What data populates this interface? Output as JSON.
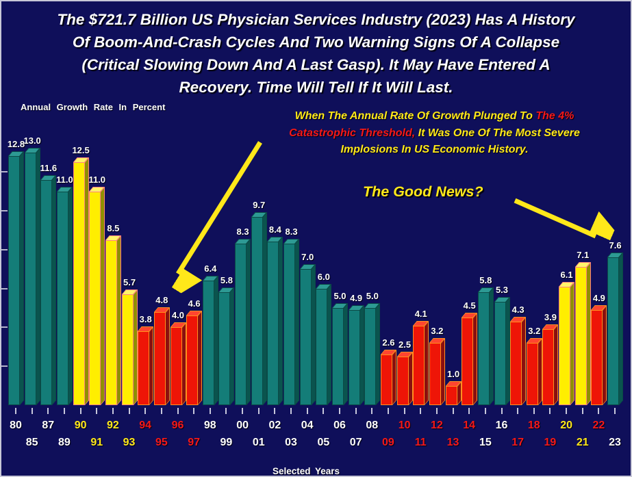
{
  "title": {
    "lines": [
      "The $721.7 Billion US Physician Services Industry (2023) Has A History",
      "Of Boom-And-Crash Cycles And Two Warning Signs Of A Collapse",
      "(Critical Slowing Down And A Last Gasp). It May Have Entered A",
      "Recovery. Time Will Tell If It Will Last."
    ]
  },
  "axis_note": "Annual Growth Rate In Percent",
  "xlabel": "Selected Years",
  "good_news": "The Good News?",
  "callout": {
    "lines": [
      [
        {
          "text": "When The Annual Rate Of Growth Plunged To ",
          "color": "yellow"
        },
        {
          "text": "The 4%",
          "color": "red"
        }
      ],
      [
        {
          "text": "Catastrophic Threshold,",
          "color": "red"
        },
        {
          "text": " It Was One Of The Most Severe",
          "color": "yellow"
        }
      ],
      [
        {
          "text": "Implosions In US Economic History.",
          "color": "yellow"
        }
      ]
    ]
  },
  "colors": {
    "background": "#0f0f5a",
    "accent_yellow": "#ffe81a",
    "accent_red": "#f51818",
    "white": "#ffffff",
    "teal_front": "#147d78",
    "teal_top": "#2d9a94",
    "teal_side": "#0a544e",
    "teal_outline": "#0a4a46",
    "yellow_front": "#ffee00",
    "yellow_top": "#fff46a",
    "yellow_side": "#8f8f00",
    "yellow_outline": "#ff8080",
    "red_front": "#ee1507",
    "red_top": "#ff4530",
    "red_side": "#8a0f0f",
    "red_outline": "#ff9020"
  },
  "chart_data": {
    "type": "bar",
    "title": "The $721.7 Billion US Physician Services Industry (2023) Has A History Of Boom-And-Crash Cycles And Two Warning Signs Of A Collapse (Critical Slowing Down And A Last Gasp). It May Have Entered A Recovery. Time Will Tell If It Will Last.",
    "ylabel": "Annual Growth Rate In Percent",
    "xlabel": "Selected Years",
    "ylim": [
      0,
      14
    ],
    "yticks": [
      2,
      4,
      6,
      8,
      10,
      12
    ],
    "grid": false,
    "legend": false,
    "categories": [
      "80",
      "85",
      "87",
      "89",
      "90",
      "91",
      "92",
      "93",
      "94",
      "95",
      "96",
      "97",
      "98",
      "99",
      "00",
      "01",
      "02",
      "03",
      "04",
      "05",
      "06",
      "07",
      "08",
      "09",
      "10",
      "11",
      "12",
      "13",
      "14",
      "15",
      "16",
      "17",
      "18",
      "19",
      "20",
      "21",
      "22",
      "23"
    ],
    "values": [
      12.8,
      13.0,
      11.6,
      11.0,
      12.5,
      11.0,
      8.5,
      5.7,
      3.8,
      4.8,
      4.0,
      4.6,
      6.4,
      5.8,
      8.3,
      9.7,
      8.4,
      8.3,
      7.0,
      6.0,
      5.0,
      4.9,
      5.0,
      2.6,
      2.5,
      4.1,
      3.2,
      1.0,
      4.5,
      5.8,
      5.3,
      4.3,
      3.2,
      3.9,
      6.1,
      7.1,
      4.9,
      7.6
    ],
    "value_labels": [
      "12.8",
      "13.0",
      "11.6",
      "11.0",
      "12.5",
      "11.0",
      "8.5",
      "5.7",
      "3.8",
      "4.8",
      "4.0",
      "4.6",
      "6.4",
      "5.8",
      "8.3",
      "9.7",
      "8.4",
      "8.3",
      "7.0",
      "6.0",
      "5.0",
      "4.9",
      "5.0",
      "2.6",
      "2.5",
      "4.1",
      "3.2",
      "1.0",
      "4.5",
      "5.8",
      "5.3",
      "4.3",
      "3.2",
      "3.9",
      "6.1",
      "7.1",
      "4.9",
      "7.6"
    ],
    "bar_colors": [
      "teal",
      "teal",
      "teal",
      "teal",
      "yellow",
      "yellow",
      "yellow",
      "yellow",
      "red",
      "red",
      "red",
      "red",
      "teal",
      "teal",
      "teal",
      "teal",
      "teal",
      "teal",
      "teal",
      "teal",
      "teal",
      "teal",
      "teal",
      "red",
      "red",
      "red",
      "red",
      "red",
      "red",
      "teal",
      "teal",
      "red",
      "red",
      "red",
      "yellow",
      "yellow",
      "red",
      "teal"
    ],
    "tick_label_colors": [
      "white",
      "white",
      "white",
      "white",
      "yellow",
      "yellow",
      "yellow",
      "yellow",
      "red",
      "red",
      "red",
      "red",
      "white",
      "white",
      "white",
      "white",
      "white",
      "white",
      "white",
      "white",
      "white",
      "white",
      "white",
      "red",
      "red",
      "red",
      "red",
      "red",
      "red",
      "white",
      "white",
      "red",
      "red",
      "red",
      "yellow",
      "yellow",
      "red",
      "white"
    ],
    "annotations": [
      {
        "name": "callout-arrow",
        "from": [
          378,
          206
        ],
        "to": [
          258,
          398
        ]
      },
      {
        "name": "good-news-arrow",
        "from": [
          750,
          291
        ],
        "to": [
          868,
          343
        ]
      }
    ]
  }
}
